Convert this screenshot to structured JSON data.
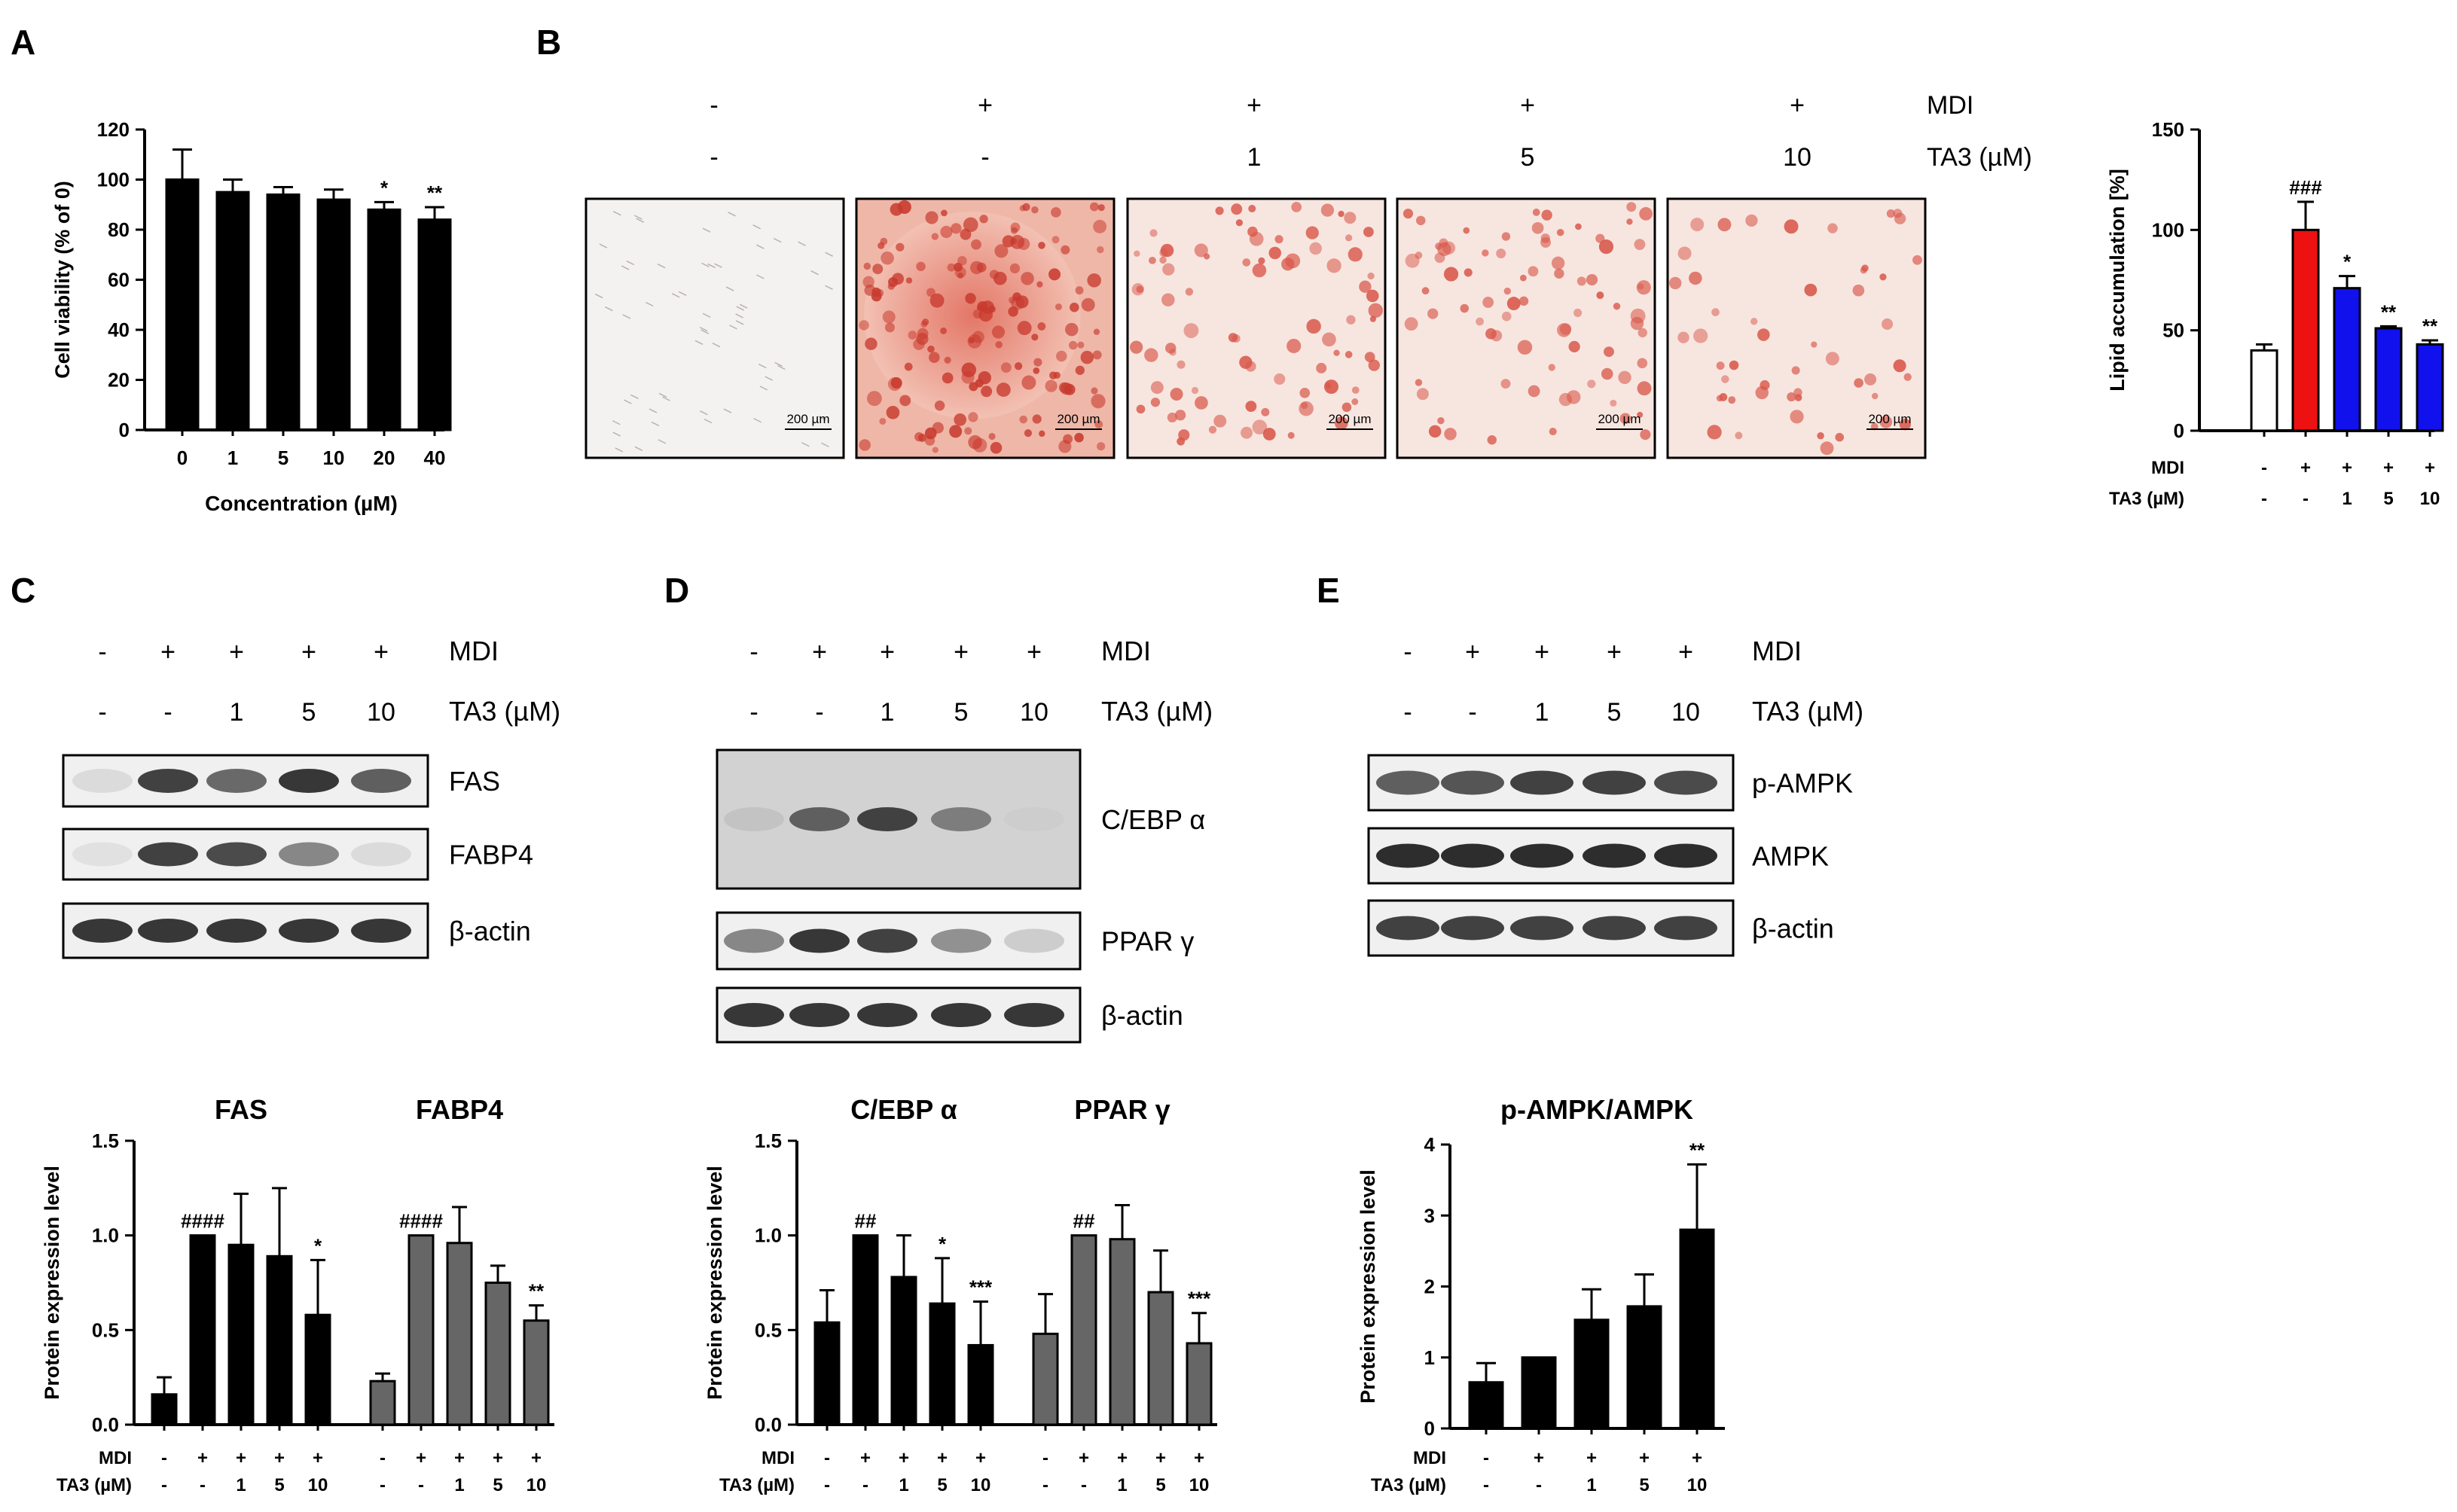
{
  "panel_letters": {
    "A": "A",
    "B": "B",
    "C": "C",
    "D": "D",
    "E": "E"
  },
  "colors": {
    "black": "#000000",
    "gray": "#666666",
    "red": "#ee1111",
    "blue": "#1111ee",
    "white": "#ffffff"
  },
  "microscopy": {
    "scale_bar_label": "200 µm",
    "treatment_labels": [
      "MDI",
      "TA3 (µM)"
    ],
    "mdi_signs": [
      "-",
      "+",
      "+",
      "+",
      "+"
    ],
    "ta3_signs": [
      "-",
      "-",
      "1",
      "5",
      "10"
    ]
  },
  "blots": {
    "C": {
      "mdi_signs": [
        "-",
        "+",
        "+",
        "+",
        "+"
      ],
      "ta3_signs": [
        "-",
        "-",
        "1",
        "5",
        "10"
      ],
      "row_labels": [
        "MDI",
        "TA3 (µM)"
      ],
      "bands": [
        {
          "label": "FAS",
          "intensity": [
            0.08,
            0.85,
            0.65,
            0.9,
            0.7
          ]
        },
        {
          "label": "FABP4",
          "intensity": [
            0.05,
            0.85,
            0.8,
            0.5,
            0.08
          ]
        },
        {
          "label": "β-actin",
          "intensity": [
            0.9,
            0.9,
            0.9,
            0.9,
            0.9
          ]
        }
      ]
    },
    "D": {
      "mdi_signs": [
        "-",
        "+",
        "+",
        "+",
        "+"
      ],
      "ta3_signs": [
        "-",
        "-",
        "1",
        "5",
        "10"
      ],
      "row_labels": [
        "MDI",
        "TA3 (µM)"
      ],
      "bands": [
        {
          "label": "C/EBP α",
          "intensity": [
            0.2,
            0.7,
            0.85,
            0.55,
            0.15
          ]
        },
        {
          "label": "PPAR γ",
          "intensity": [
            0.5,
            0.9,
            0.85,
            0.45,
            0.15
          ]
        },
        {
          "label": "β-actin",
          "intensity": [
            0.9,
            0.9,
            0.9,
            0.9,
            0.9
          ]
        }
      ]
    },
    "E": {
      "mdi_signs": [
        "-",
        "+",
        "+",
        "+",
        "+"
      ],
      "ta3_signs": [
        "-",
        "-",
        "1",
        "5",
        "10"
      ],
      "row_labels": [
        "MDI",
        "TA3 (µM)"
      ],
      "bands": [
        {
          "label": "p-AMPK",
          "intensity": [
            0.7,
            0.75,
            0.85,
            0.85,
            0.8
          ]
        },
        {
          "label": "AMPK",
          "intensity": [
            0.95,
            0.95,
            0.95,
            0.95,
            0.95
          ]
        },
        {
          "label": "β-actin",
          "intensity": [
            0.85,
            0.85,
            0.85,
            0.85,
            0.85
          ]
        }
      ]
    }
  },
  "chart_data": [
    {
      "id": "A",
      "type": "bar",
      "categories": [
        "0",
        "1",
        "5",
        "10",
        "20",
        "40"
      ],
      "values": [
        100,
        95,
        94,
        92,
        88,
        84
      ],
      "errors": [
        12,
        5,
        3,
        4,
        3,
        5
      ],
      "annotations": [
        "",
        "",
        "",
        "",
        "*",
        "**"
      ],
      "xlabel": "Concentration (µM)",
      "ylabel": "Cell viability (% of 0)",
      "ylim": [
        0,
        120
      ],
      "yticks": [
        "0",
        "20",
        "40",
        "60",
        "80",
        "100",
        "120"
      ],
      "bar_color": "#000000"
    },
    {
      "id": "B",
      "type": "bar",
      "mdi": [
        "-",
        "+",
        "+",
        "+",
        "+"
      ],
      "ta3": [
        "-",
        "-",
        "1",
        "5",
        "10"
      ],
      "row_labels": [
        "MDI",
        "TA3 (µM)"
      ],
      "values": [
        40,
        100,
        71,
        51,
        43
      ],
      "errors": [
        3,
        14,
        6,
        1,
        2
      ],
      "annotations": [
        "",
        "###",
        "*",
        "**",
        "**"
      ],
      "bar_colors": [
        "#ffffff",
        "#ee1111",
        "#1111ee",
        "#1111ee",
        "#1111ee"
      ],
      "xlabel": "",
      "ylabel": "Lipid accumulation [%]",
      "ylim": [
        0,
        150
      ],
      "yticks": [
        "0",
        "50",
        "100",
        "150"
      ]
    },
    {
      "id": "C",
      "type": "bar",
      "mdi": [
        "-",
        "+",
        "+",
        "+",
        "+"
      ],
      "ta3": [
        "-",
        "-",
        "1",
        "5",
        "10"
      ],
      "row_labels": [
        "MDI",
        "TA3 (µM)"
      ],
      "series": [
        {
          "name": "FAS",
          "color": "#000000",
          "values": [
            0.16,
            1.0,
            0.95,
            0.89,
            0.58
          ],
          "errors": [
            0.09,
            0,
            0.27,
            0.36,
            0.29
          ],
          "annotations": [
            "",
            "####",
            "",
            "",
            "*"
          ]
        },
        {
          "name": "FABP4",
          "color": "#666666",
          "values": [
            0.23,
            1.0,
            0.96,
            0.75,
            0.55
          ],
          "errors": [
            0.04,
            0,
            0.19,
            0.09,
            0.08
          ],
          "annotations": [
            "",
            "####",
            "",
            "",
            "**"
          ]
        }
      ],
      "xlabel": "",
      "ylabel": "Protein expression level",
      "ylim": [
        0,
        1.5
      ],
      "yticks": [
        "0.0",
        "0.5",
        "1.0",
        "1.5"
      ]
    },
    {
      "id": "D",
      "type": "bar",
      "mdi": [
        "-",
        "+",
        "+",
        "+",
        "+"
      ],
      "ta3": [
        "-",
        "-",
        "1",
        "5",
        "10"
      ],
      "row_labels": [
        "MDI",
        "TA3 (µM)"
      ],
      "series": [
        {
          "name": "C/EBP α",
          "color": "#000000",
          "values": [
            0.54,
            1.0,
            0.78,
            0.64,
            0.42
          ],
          "errors": [
            0.17,
            0,
            0.22,
            0.24,
            0.23
          ],
          "annotations": [
            "",
            "##",
            "",
            "*",
            "***"
          ]
        },
        {
          "name": "PPAR γ",
          "color": "#666666",
          "values": [
            0.48,
            1.0,
            0.98,
            0.7,
            0.43
          ],
          "errors": [
            0.21,
            0,
            0.18,
            0.22,
            0.16
          ],
          "annotations": [
            "",
            "##",
            "",
            "",
            "***"
          ]
        }
      ],
      "xlabel": "",
      "ylabel": "Protein expression level",
      "ylim": [
        0,
        1.5
      ],
      "yticks": [
        "0.0",
        "0.5",
        "1.0",
        "1.5"
      ]
    },
    {
      "id": "E",
      "type": "bar",
      "title": "p-AMPK/AMPK",
      "mdi": [
        "-",
        "+",
        "+",
        "+",
        "+"
      ],
      "ta3": [
        "-",
        "-",
        "1",
        "5",
        "10"
      ],
      "row_labels": [
        "MDI",
        "TA3 (µM)"
      ],
      "values": [
        0.65,
        1.0,
        1.53,
        1.72,
        2.8
      ],
      "errors": [
        0.27,
        0,
        0.43,
        0.45,
        0.92
      ],
      "annotations": [
        "",
        "",
        "",
        "",
        "**"
      ],
      "bar_color": "#000000",
      "xlabel": "",
      "ylabel": "Protein expression level",
      "ylim": [
        0,
        4
      ],
      "yticks": [
        "0",
        "1",
        "2",
        "3",
        "4"
      ]
    }
  ]
}
